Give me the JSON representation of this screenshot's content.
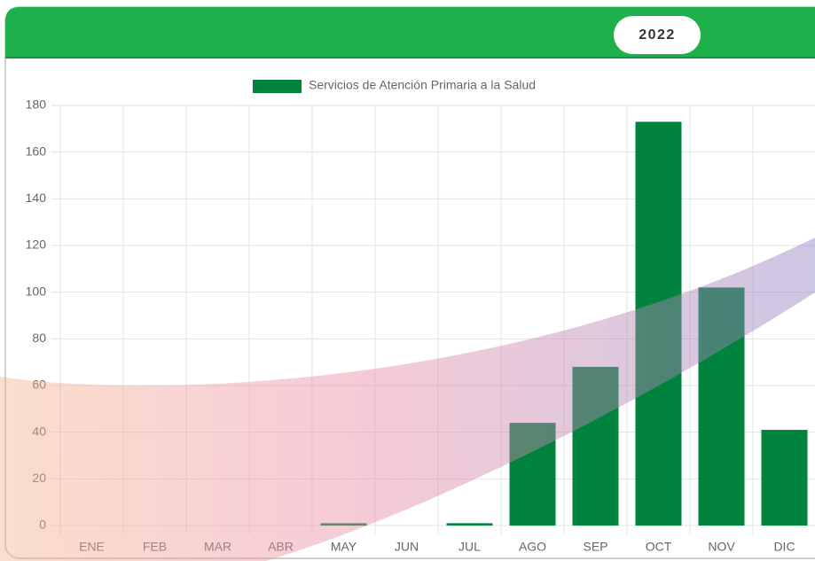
{
  "header": {
    "year": "2022"
  },
  "chart_data": {
    "type": "bar",
    "categories": [
      "ENE",
      "FEB",
      "MAR",
      "ABR",
      "MAY",
      "JUN",
      "JUL",
      "AGO",
      "SEP",
      "OCT",
      "NOV",
      "DIC"
    ],
    "series": [
      {
        "name": "Servicios de Atención Primaria a la Salud",
        "color": "#00843d",
        "values": [
          0,
          0,
          0,
          0,
          1,
          0,
          1,
          44,
          68,
          173,
          102,
          41
        ]
      }
    ],
    "ylim": [
      0,
      180
    ],
    "yticks": [
      0,
      20,
      40,
      60,
      80,
      100,
      120,
      140,
      160,
      180
    ],
    "grid": true,
    "legend": "top"
  }
}
